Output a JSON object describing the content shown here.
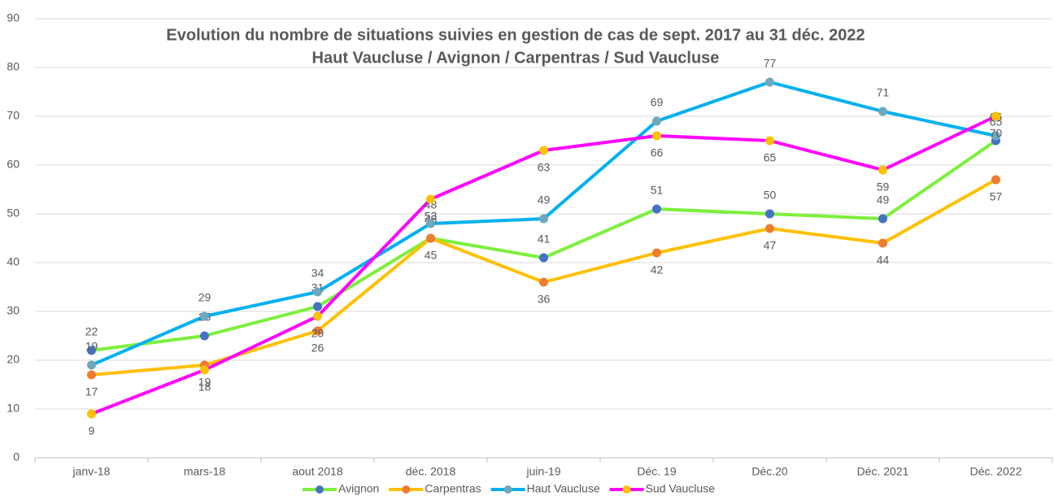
{
  "chart_data": {
    "type": "line",
    "title": "Evolution du nombre de situations suivies en gestion de cas de sept. 2017 au 31 déc. 2022",
    "subtitle": "Haut Vaucluse / Avignon / Carpentras / Sud Vaucluse",
    "categories": [
      "janv-18",
      "mars-18",
      "aout 2018",
      "déc. 2018",
      "juin-19",
      "Déc. 19",
      "Déc.20",
      "Déc. 2021",
      "Déc. 2022"
    ],
    "series": [
      {
        "name": "Avignon",
        "color": "#7cf03c",
        "marker_color": "#4472c4",
        "values": [
          22,
          25,
          31,
          45,
          41,
          51,
          50,
          49,
          65
        ]
      },
      {
        "name": "Carpentras",
        "color": "#ffc000",
        "marker_color": "#ed7d31",
        "values": [
          17,
          19,
          26,
          45,
          36,
          42,
          47,
          44,
          57
        ]
      },
      {
        "name": "Haut Vaucluse",
        "color": "#00b0f0",
        "marker_color": "#6fa8bc",
        "values": [
          19,
          29,
          34,
          48,
          49,
          69,
          77,
          71,
          66
        ]
      },
      {
        "name": "Sud Vaucluse",
        "color": "#ff00ff",
        "marker_color": "#ffc000",
        "values": [
          9,
          18,
          29,
          53,
          63,
          66,
          65,
          59,
          70
        ]
      }
    ],
    "ylim": [
      0,
      90
    ],
    "yticks": [
      0,
      10,
      20,
      30,
      40,
      50,
      60,
      70,
      80,
      90
    ],
    "grid": true,
    "legend": "bottom"
  }
}
